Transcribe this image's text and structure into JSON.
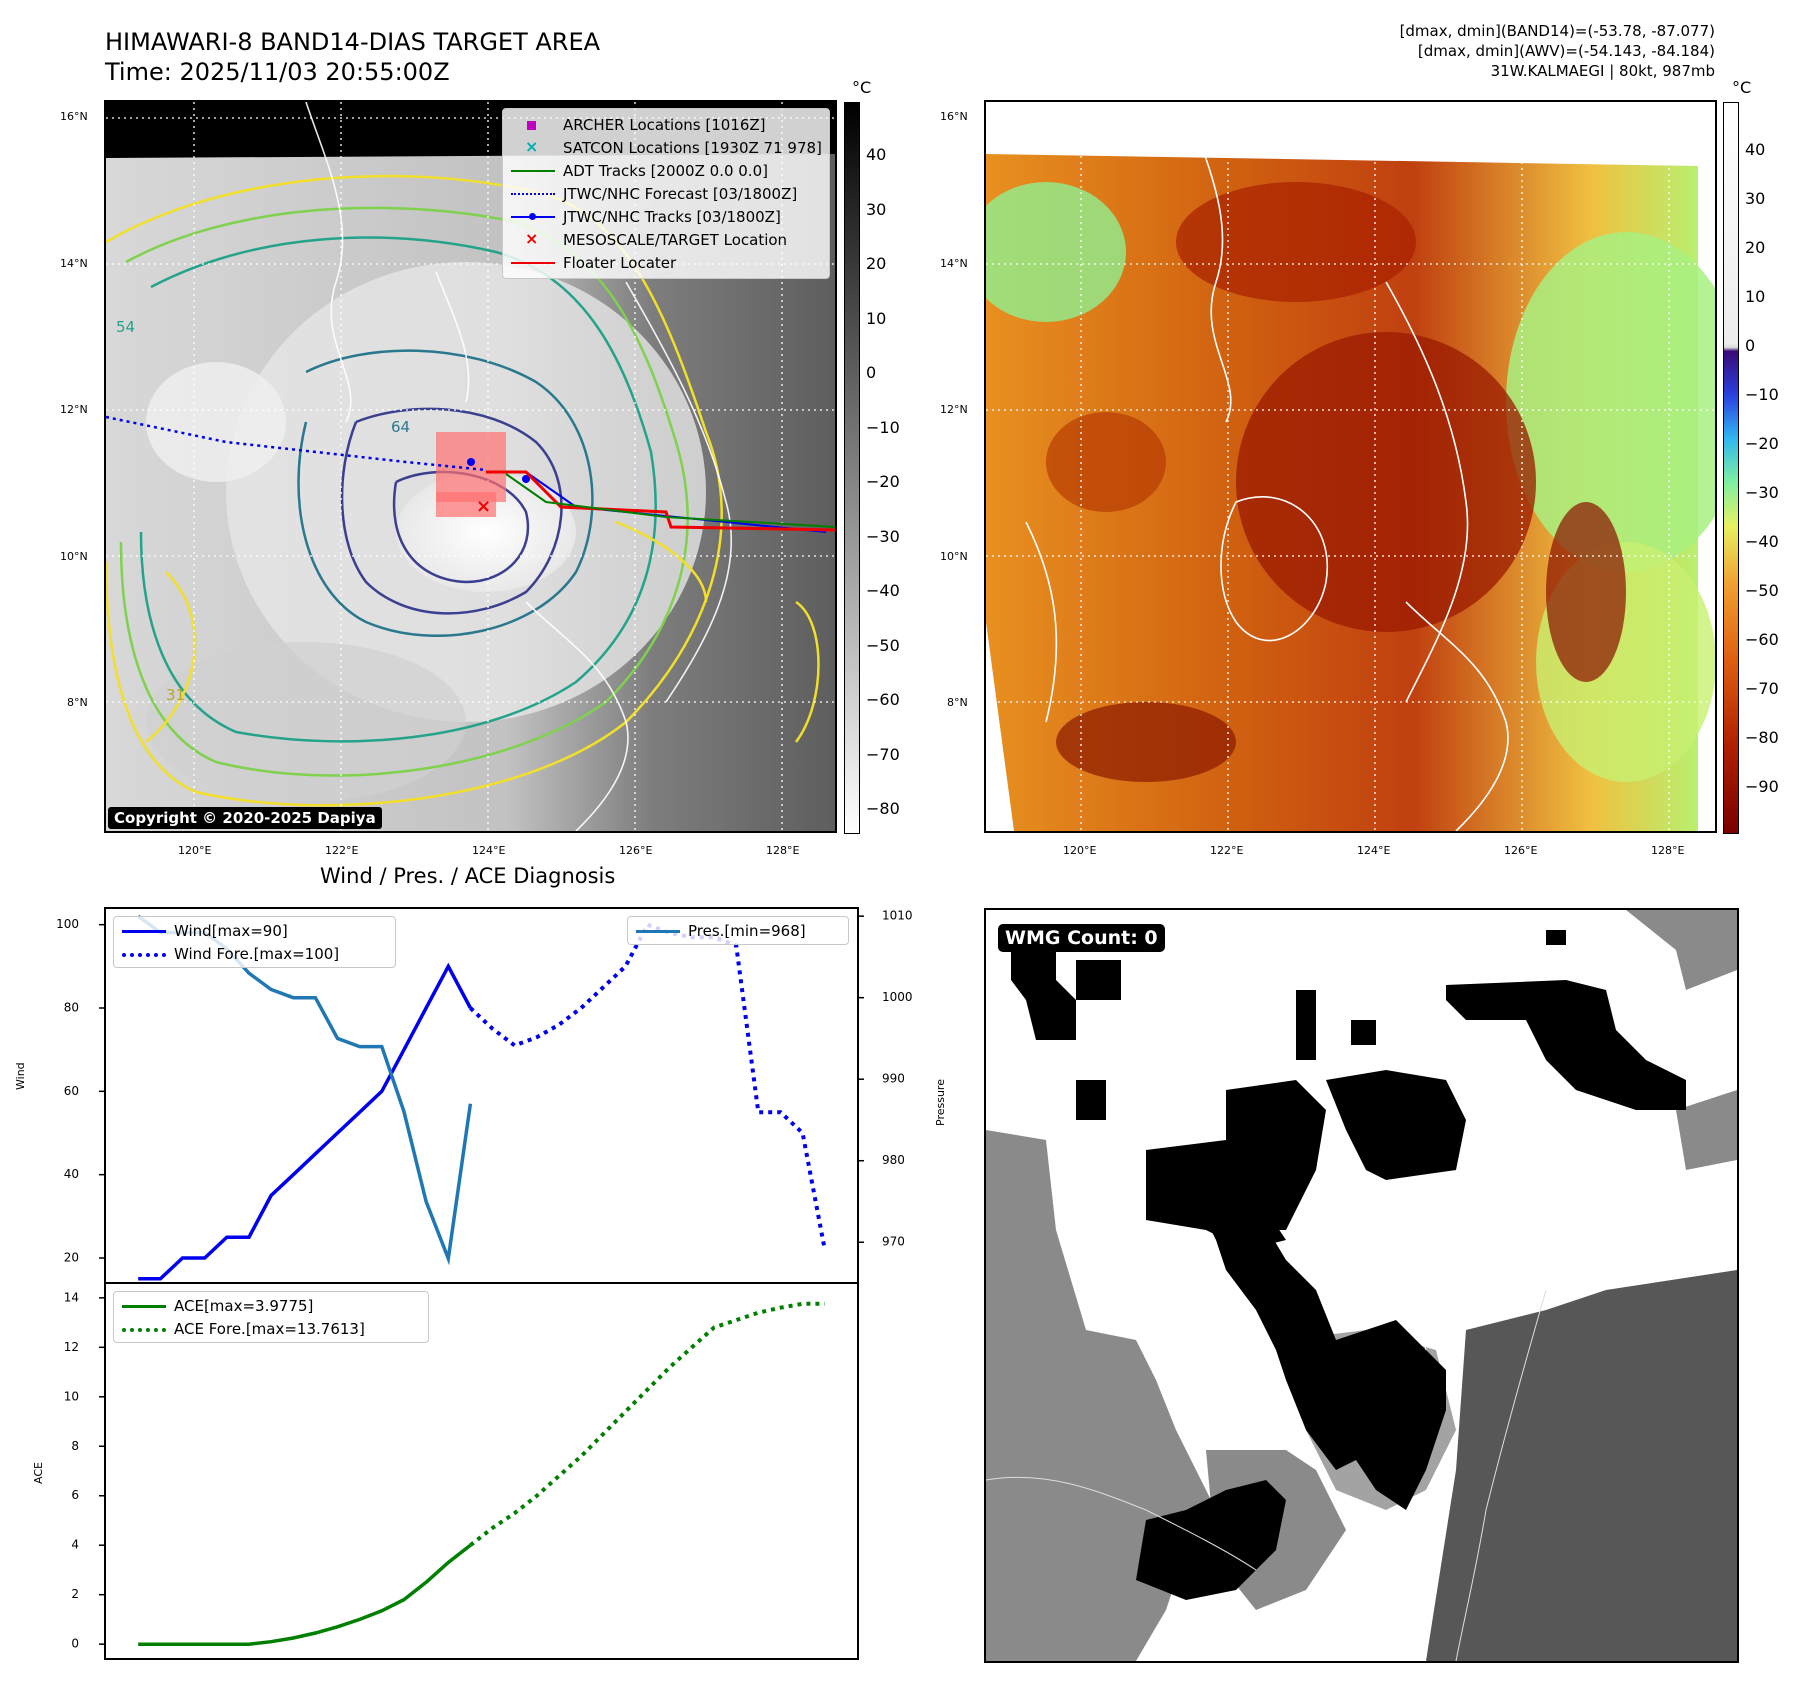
{
  "header": {
    "title_line1": "HIMAWARI-8 BAND14-DIAS TARGET AREA",
    "title_line2": "Time: 2025/11/03 20:55:00Z",
    "stats_line1": "[dmax, dmin](BAND14)=(-53.78, -87.077)",
    "stats_line2": "[dmax, dmin](AWV)=(-54.143, -84.184)",
    "stats_line3": "31W.KALMAEGI | 80kt, 987mb"
  },
  "map_axes": {
    "lat_labels": [
      "16°N",
      "14°N",
      "12°N",
      "10°N",
      "8°N"
    ],
    "lon_labels": [
      "120°E",
      "122°E",
      "124°E",
      "126°E",
      "128°E"
    ]
  },
  "ir_panel": {
    "legend": [
      {
        "label": "ARCHER Locations [1016Z]",
        "marker": "square",
        "color": "#c000c0"
      },
      {
        "label": "SATCON Locations [1930Z 71 978]",
        "marker": "x",
        "color": "#00b0b0"
      },
      {
        "label": "ADT Tracks [2000Z 0.0 0.0]",
        "marker": "line",
        "color": "#007f00"
      },
      {
        "label": "JTWC/NHC Forecast [03/1800Z]",
        "marker": "dotted",
        "color": "#0000ee"
      },
      {
        "label": "JTWC/NHC Tracks [03/1800Z]",
        "marker": "line-dot",
        "color": "#0000ee"
      },
      {
        "label": "MESOSCALE/TARGET Location",
        "marker": "x",
        "color": "#ee0000"
      },
      {
        "label": "Floater Locater",
        "marker": "line",
        "color": "#ee0000"
      }
    ],
    "copyright": "Copyright © 2020-2025 Dapiya",
    "colorbar_unit": "°C",
    "colorbar_ticks": [
      "40",
      "30",
      "20",
      "10",
      "0",
      "−10",
      "−20",
      "−30",
      "−40",
      "−50",
      "−60",
      "−70",
      "−80"
    ],
    "contour_labels": [
      "64",
      "31",
      "54"
    ]
  },
  "awv_panel": {
    "colorbar_unit": "°C",
    "colorbar_ticks": [
      "40",
      "30",
      "20",
      "10",
      "0",
      "−10",
      "−20",
      "−30",
      "−40",
      "−50",
      "−60",
      "−70",
      "−80",
      "−90"
    ]
  },
  "diagnosis_panel": {
    "title": "Wind / Pres. / ACE Diagnosis",
    "wind_ylabel": "Wind",
    "pressure_ylabel": "Pressure",
    "ace_ylabel": "ACE",
    "wind_ticks": [
      "100",
      "80",
      "60",
      "40",
      "20"
    ],
    "pressure_ticks": [
      "1010",
      "1000",
      "990",
      "980",
      "970"
    ],
    "ace_ticks": [
      "14",
      "12",
      "10",
      "8",
      "6",
      "4",
      "2",
      "0"
    ],
    "legend_wind": "Wind[max=90]",
    "legend_wind_fore": "Wind Fore.[max=100]",
    "legend_pres": "Pres.[min=968]",
    "legend_ace": "ACE[max=3.9775]",
    "legend_ace_fore": "ACE Fore.[max=13.7613]"
  },
  "wmg_panel": {
    "label": "WMG Count: 0"
  },
  "colors": {
    "wind": "#0000ee",
    "pressure": "#1f77b4",
    "ace": "#007f00"
  },
  "chart_data": [
    {
      "type": "line",
      "title": "Wind / Pres. / ACE Diagnosis",
      "ylabel": "Wind",
      "ylim": [
        14,
        104
      ],
      "series": [
        {
          "name": "Wind[max=90]",
          "style": "solid",
          "axis": "left",
          "x": [
            0,
            1,
            2,
            3,
            4,
            5,
            6,
            7,
            8,
            9,
            10,
            11,
            12,
            13,
            14,
            15
          ],
          "values": [
            15,
            15,
            20,
            20,
            25,
            25,
            35,
            40,
            45,
            50,
            55,
            60,
            70,
            80,
            90,
            80
          ]
        },
        {
          "name": "Wind Fore.[max=100]",
          "style": "dotted",
          "axis": "left",
          "x": [
            15,
            16,
            17,
            18,
            19,
            20,
            21,
            22,
            23,
            24,
            25,
            26,
            27,
            28,
            29,
            30,
            31
          ],
          "values": [
            80,
            75,
            71,
            73,
            76,
            80,
            85,
            90,
            100,
            98,
            97,
            97,
            95,
            55,
            55,
            50,
            22
          ]
        },
        {
          "name": "Pres.[min=968]",
          "style": "solid",
          "axis": "right",
          "x": [
            0,
            1,
            2,
            3,
            4,
            5,
            6,
            7,
            8,
            9,
            10,
            11,
            12,
            13,
            14,
            15
          ],
          "values": [
            1010,
            1008,
            1008,
            1008,
            1006,
            1003,
            1001,
            1000,
            1000,
            995,
            994,
            994,
            986,
            975,
            968,
            987
          ]
        }
      ],
      "y2label": "Pressure",
      "y2lim": [
        965,
        1011
      ]
    },
    {
      "type": "line",
      "ylabel": "ACE",
      "ylim": [
        -0.6,
        14.6
      ],
      "series": [
        {
          "name": "ACE[max=3.9775]",
          "style": "solid",
          "x": [
            0,
            1,
            2,
            3,
            4,
            5,
            6,
            7,
            8,
            9,
            10,
            11,
            12,
            13,
            14,
            15
          ],
          "values": [
            0,
            0,
            0,
            0,
            0,
            0,
            0.1,
            0.25,
            0.45,
            0.7,
            1.0,
            1.35,
            1.8,
            2.5,
            3.3,
            4.0
          ]
        },
        {
          "name": "ACE Fore.[max=13.7613]",
          "style": "dotted",
          "x": [
            15,
            16,
            17,
            18,
            19,
            20,
            21,
            22,
            23,
            24,
            25,
            26,
            27,
            28,
            29,
            30,
            31
          ],
          "values": [
            4.0,
            4.7,
            5.3,
            6.0,
            6.8,
            7.6,
            8.5,
            9.4,
            10.3,
            11.2,
            12.0,
            12.8,
            13.1,
            13.4,
            13.6,
            13.76,
            13.76
          ]
        }
      ]
    }
  ]
}
